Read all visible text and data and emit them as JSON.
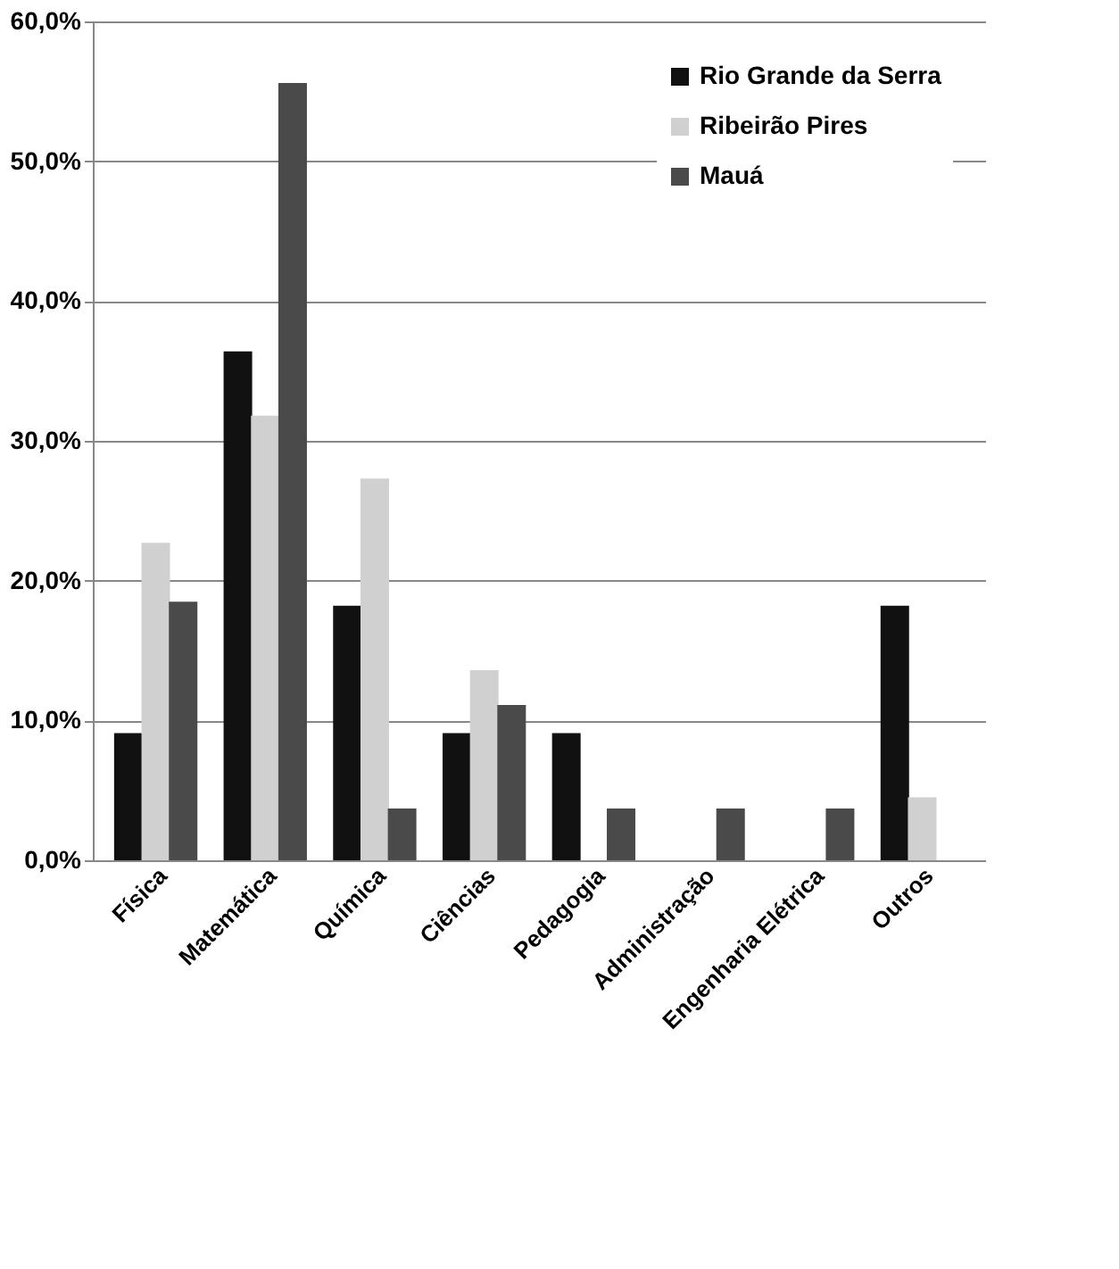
{
  "chart_data": {
    "type": "bar",
    "categories": [
      "Física",
      "Matemática",
      "Química",
      "Ciências",
      "Pedagogia",
      "Administração",
      "Engenharia Elétrica",
      "Outros"
    ],
    "series": [
      {
        "name": "Rio Grande da Serra",
        "color": "#111111",
        "values": [
          9.1,
          36.4,
          18.2,
          9.1,
          9.1,
          0,
          0,
          18.2
        ]
      },
      {
        "name": "Ribeirão Pires",
        "color": "#d0d0d0",
        "values": [
          22.7,
          31.8,
          27.3,
          13.6,
          0,
          0,
          0,
          4.5
        ]
      },
      {
        "name": "Mauá",
        "color": "#4a4a4a",
        "values": [
          18.5,
          55.6,
          3.7,
          11.1,
          3.7,
          3.7,
          3.7,
          0
        ]
      }
    ],
    "ylim": [
      0,
      60
    ],
    "yticks": [
      {
        "value": 0,
        "label": "0,0%"
      },
      {
        "value": 10,
        "label": "10,0%"
      },
      {
        "value": 20,
        "label": "20,0%"
      },
      {
        "value": 30,
        "label": "30,0%"
      },
      {
        "value": 40,
        "label": "40,0%"
      },
      {
        "value": 50,
        "label": "50,0%"
      },
      {
        "value": 60,
        "label": "60,0%"
      }
    ],
    "grid": "y",
    "legend": "top right"
  }
}
